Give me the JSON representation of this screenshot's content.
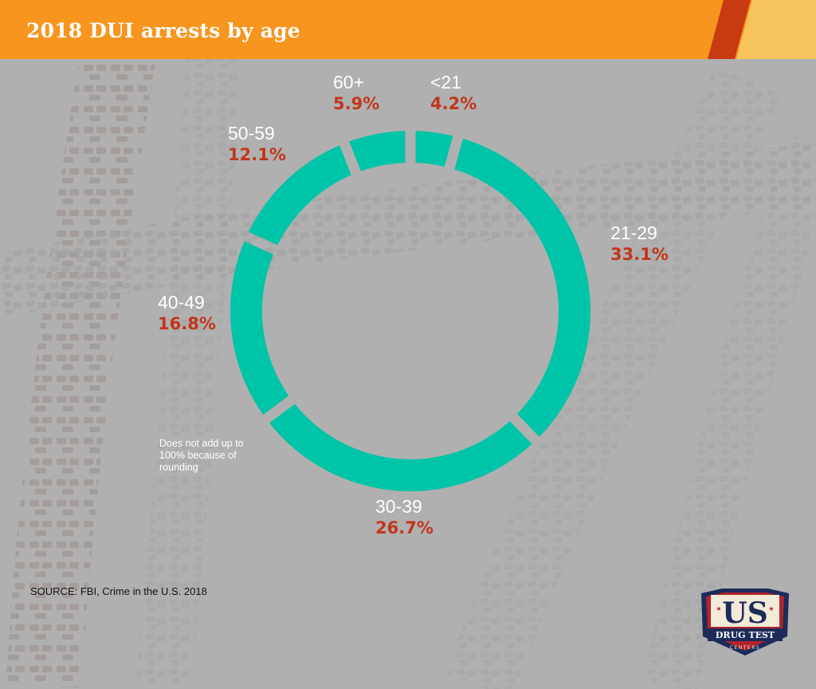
{
  "header": {
    "title": "2018 DUI arrests by age",
    "bar_color": "#f7951f",
    "stripe_colors": [
      "#c73a12",
      "#f6c35d"
    ]
  },
  "chart_data": {
    "type": "pie",
    "style": "donut",
    "title": "2018 DUI arrests by age",
    "categories": [
      "<21",
      "21-29",
      "30-39",
      "40-49",
      "50-59",
      "60+"
    ],
    "values": [
      4.2,
      33.1,
      26.7,
      16.8,
      12.1,
      5.9
    ],
    "value_labels": [
      "4.2%",
      "33.1%",
      "26.7%",
      "16.8%",
      "12.1%",
      "5.9%"
    ],
    "segment_color": "#00c4a7",
    "label_color": "#ffffff",
    "value_color": "#c2361a",
    "start": "top, clockwise"
  },
  "note": "Does not add up to 100% because of rounding",
  "source": "SOURCE: FBI, Crime in the U.S. 2018",
  "logo": {
    "us": "US",
    "drug_test": "DRUG TEST",
    "centers": "CENTERS",
    "colors": {
      "navy": "#1c2b5a",
      "red": "#b0252c",
      "cream": "#f3ead8"
    }
  }
}
